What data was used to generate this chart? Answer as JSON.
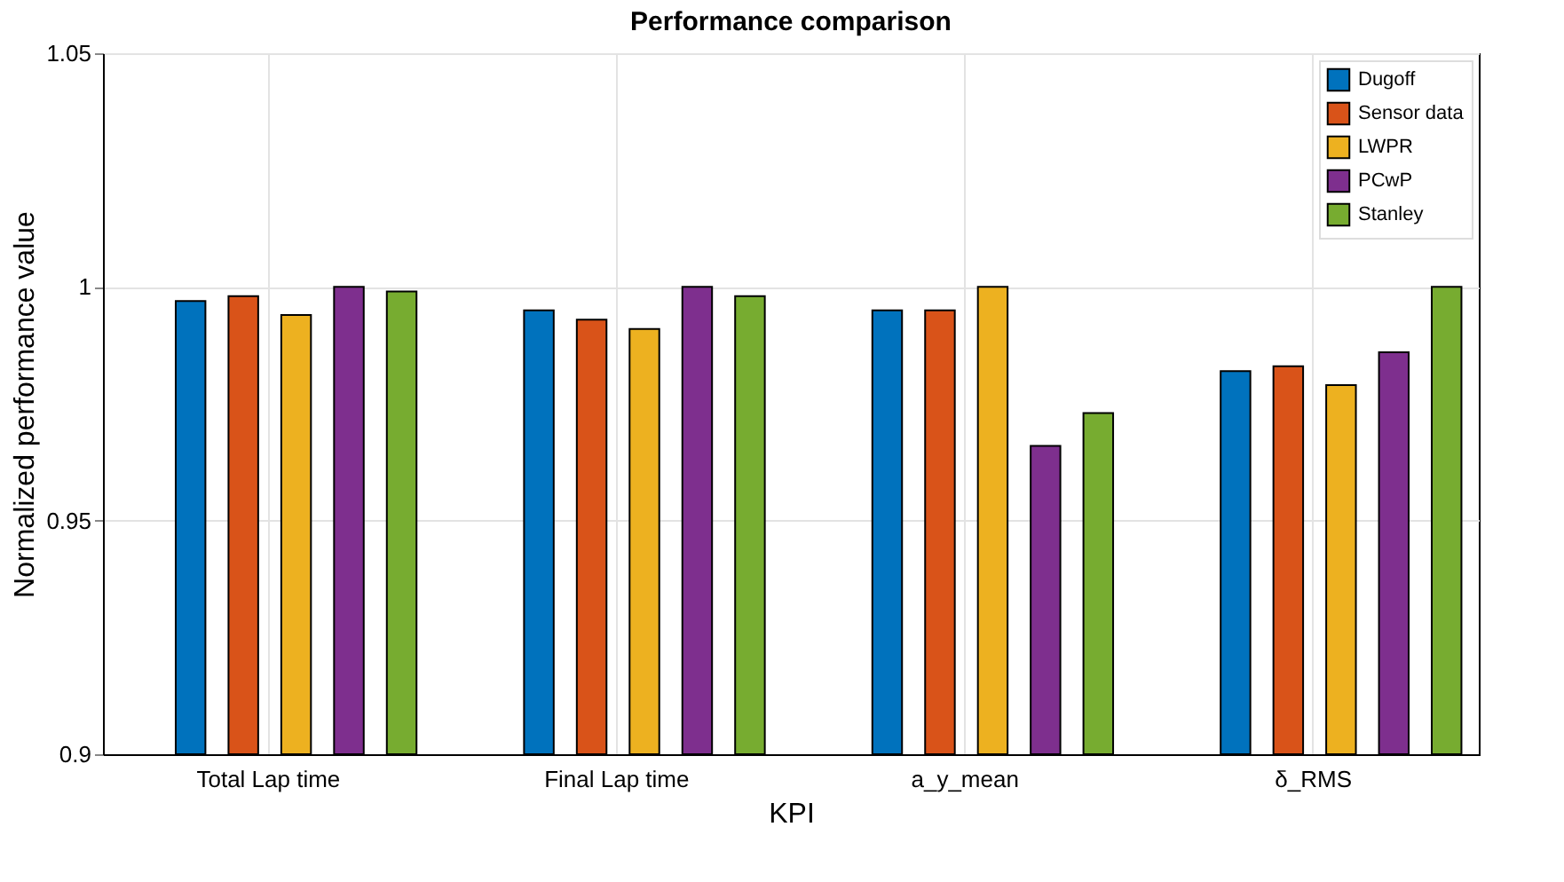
{
  "chart_data": {
    "type": "bar",
    "title": "Performance comparison",
    "xlabel": "KPI",
    "ylabel": "Normalized performance value",
    "categories": [
      "Total Lap time",
      "Final Lap time",
      "a_y_mean",
      "δ_RMS"
    ],
    "series": [
      {
        "name": "Dugoff",
        "color": "#0072bd",
        "values": [
          0.997,
          0.995,
          0.995,
          0.982
        ]
      },
      {
        "name": "Sensor data",
        "color": "#d95319",
        "values": [
          0.998,
          0.993,
          0.995,
          0.983
        ]
      },
      {
        "name": "LWPR",
        "color": "#edb120",
        "values": [
          0.994,
          0.991,
          1.0,
          0.979
        ]
      },
      {
        "name": "PCwP",
        "color": "#7e2f8e",
        "values": [
          1.0,
          1.0,
          0.966,
          0.986
        ]
      },
      {
        "name": "Stanley",
        "color": "#77ac30",
        "values": [
          0.999,
          0.998,
          0.973,
          1.0
        ]
      }
    ],
    "ylim": [
      0.9,
      1.05
    ],
    "yticks": [
      0.9,
      0.95,
      1,
      1.05
    ],
    "grid": true,
    "legend": "top right"
  }
}
